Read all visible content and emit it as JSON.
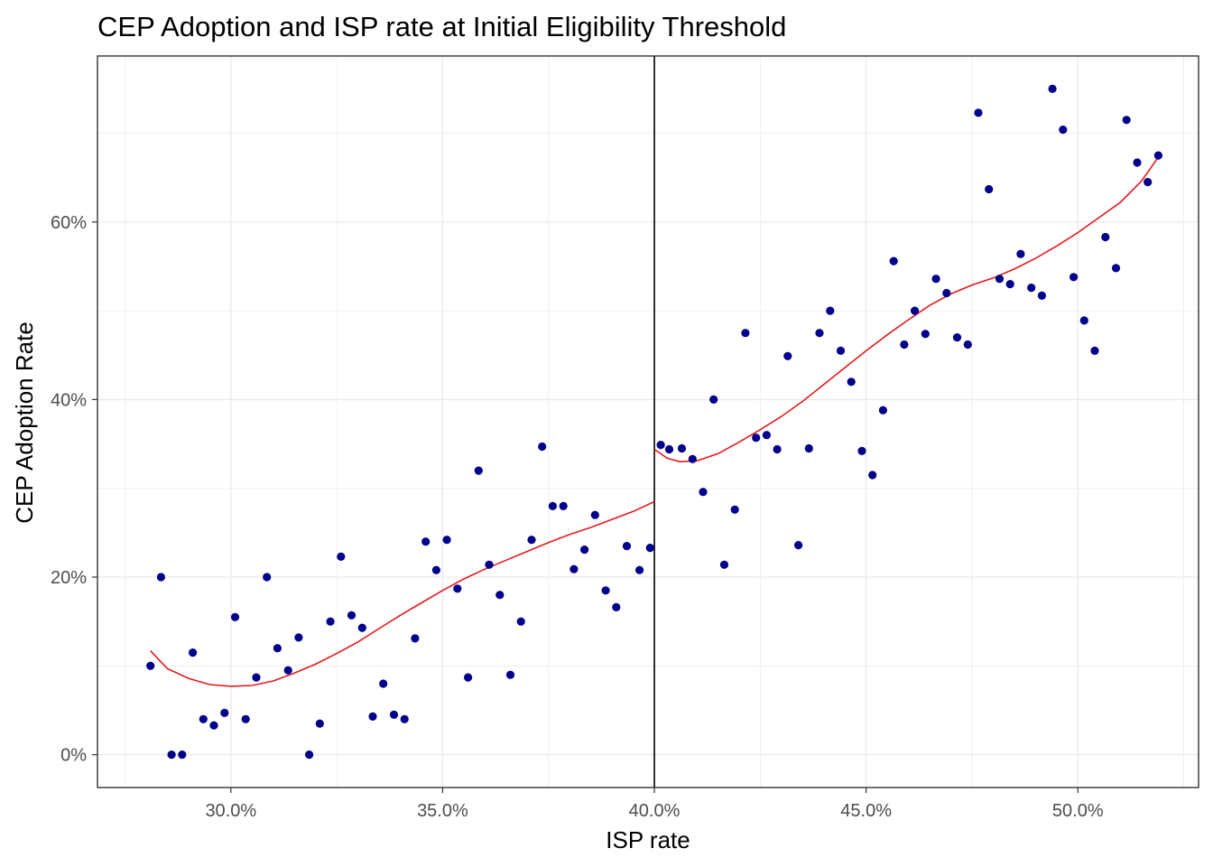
{
  "chart_data": {
    "type": "scatter",
    "title": "CEP Adoption and ISP rate at Initial Eligibility Threshold",
    "xlabel": "ISP rate",
    "ylabel": "CEP Adoption Rate",
    "xlim": [
      0.2685,
      0.5285
    ],
    "ylim": [
      -0.037,
      0.787
    ],
    "x_ticks": [
      0.3,
      0.35,
      0.4,
      0.45,
      0.5
    ],
    "x_tick_labels": [
      "30.0%",
      "35.0%",
      "40.0%",
      "45.0%",
      "50.0%"
    ],
    "y_ticks": [
      0.0,
      0.2,
      0.4,
      0.6
    ],
    "y_tick_labels": [
      "0%",
      "20%",
      "40%",
      "60%"
    ],
    "cutoff": 0.4,
    "grid": true,
    "colors": {
      "points": "#00008b",
      "fit": "#e41a1c",
      "cutoff": "#000000",
      "grid": "#ebebeb",
      "frame": "#333333"
    },
    "series": [
      {
        "x": [
          0.281,
          0.2835,
          0.286,
          0.2885,
          0.291,
          0.2935,
          0.296,
          0.2985,
          0.301,
          0.3035,
          0.306,
          0.3085,
          0.311,
          0.3135,
          0.316,
          0.3185,
          0.321,
          0.3235,
          0.326,
          0.3285,
          0.331,
          0.3335,
          0.336,
          0.3385,
          0.341,
          0.3435,
          0.346,
          0.3485,
          0.351,
          0.3535,
          0.356,
          0.3585,
          0.361,
          0.3635,
          0.366,
          0.3685,
          0.371,
          0.3735,
          0.376,
          0.3785,
          0.381,
          0.3835,
          0.386,
          0.3885,
          0.391,
          0.3935,
          0.3965,
          0.399,
          0.4015,
          0.4035,
          0.4065,
          0.409,
          0.4115,
          0.414,
          0.4165,
          0.419,
          0.4215,
          0.424,
          0.4265,
          0.429,
          0.4315,
          0.434,
          0.4365,
          0.439,
          0.4415,
          0.444,
          0.4465,
          0.449,
          0.4515,
          0.454,
          0.4565,
          0.459,
          0.4615,
          0.464,
          0.4665,
          0.469,
          0.4715,
          0.474,
          0.4765,
          0.479,
          0.4815,
          0.484,
          0.4865,
          0.489,
          0.4915,
          0.494,
          0.4965,
          0.499,
          0.5015,
          0.504,
          0.5065,
          0.509,
          0.5115,
          0.514,
          0.5165,
          0.519
        ],
        "y": [
          0.1,
          0.2,
          0.0,
          0.0,
          0.115,
          0.04,
          0.033,
          0.047,
          0.155,
          0.04,
          0.087,
          0.2,
          0.12,
          0.095,
          0.132,
          0.0,
          0.035,
          0.15,
          0.223,
          0.157,
          0.143,
          0.043,
          0.08,
          0.045,
          0.04,
          0.131,
          0.24,
          0.208,
          0.242,
          0.187,
          0.087,
          0.32,
          0.214,
          0.18,
          0.09,
          0.15,
          0.242,
          0.347,
          0.28,
          0.28,
          0.209,
          0.231,
          0.27,
          0.185,
          0.166,
          0.235,
          0.208,
          0.233,
          0.349,
          0.344,
          0.345,
          0.333,
          0.296,
          0.4,
          0.214,
          0.276,
          0.475,
          0.357,
          0.36,
          0.344,
          0.449,
          0.236,
          0.345,
          0.475,
          0.5,
          0.455,
          0.42,
          0.342,
          0.315,
          0.388,
          0.556,
          0.462,
          0.5,
          0.474,
          0.536,
          0.52,
          0.47,
          0.462,
          0.723,
          0.637,
          0.536,
          0.53,
          0.564,
          0.526,
          0.517,
          0.75,
          0.704,
          0.538,
          0.489,
          0.455,
          0.583,
          0.548,
          0.715,
          0.667,
          0.645,
          0.675
        ]
      }
    ],
    "fit_left": {
      "x": [
        0.281,
        0.285,
        0.29,
        0.295,
        0.3,
        0.305,
        0.31,
        0.315,
        0.32,
        0.325,
        0.33,
        0.335,
        0.34,
        0.345,
        0.35,
        0.355,
        0.36,
        0.365,
        0.37,
        0.375,
        0.38,
        0.385,
        0.39,
        0.395,
        0.4
      ],
      "y": [
        0.117,
        0.097,
        0.086,
        0.079,
        0.077,
        0.078,
        0.083,
        0.092,
        0.102,
        0.114,
        0.127,
        0.142,
        0.157,
        0.171,
        0.185,
        0.198,
        0.209,
        0.219,
        0.229,
        0.239,
        0.248,
        0.256,
        0.265,
        0.274,
        0.285
      ]
    },
    "fit_right": {
      "x": [
        0.4,
        0.403,
        0.406,
        0.41,
        0.415,
        0.42,
        0.425,
        0.43,
        0.435,
        0.44,
        0.445,
        0.45,
        0.455,
        0.46,
        0.465,
        0.47,
        0.475,
        0.48,
        0.485,
        0.49,
        0.495,
        0.5,
        0.505,
        0.51,
        0.515,
        0.519
      ],
      "y": [
        0.344,
        0.334,
        0.33,
        0.331,
        0.339,
        0.352,
        0.366,
        0.381,
        0.398,
        0.417,
        0.436,
        0.455,
        0.473,
        0.49,
        0.506,
        0.519,
        0.529,
        0.537,
        0.547,
        0.559,
        0.573,
        0.588,
        0.605,
        0.622,
        0.646,
        0.673
      ]
    }
  }
}
